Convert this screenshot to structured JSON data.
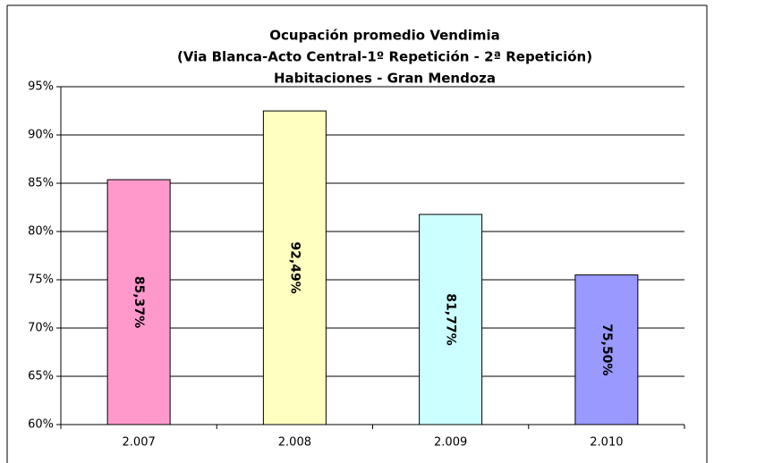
{
  "chart_data": {
    "type": "bar",
    "title": [
      "Ocupación promedio Vendimia",
      "(Via Blanca-Acto Central-1º Repetición - 2ª Repetición)",
      "Habitaciones - Gran Mendoza"
    ],
    "categories": [
      "2.007",
      "2.008",
      "2.009",
      "2.010"
    ],
    "values": [
      85.37,
      92.49,
      81.77,
      75.5
    ],
    "value_labels": [
      "85,37%",
      "92,49%",
      "81,77%",
      "75,50%"
    ],
    "colors": [
      "#ff99cc",
      "#ffffc0",
      "#ccffff",
      "#9999ff"
    ],
    "ylim": [
      60,
      95
    ],
    "yticks": [
      {
        "value": 60,
        "label": "60%"
      },
      {
        "value": 65,
        "label": "65%"
      },
      {
        "value": 70,
        "label": "70%"
      },
      {
        "value": 75,
        "label": "75%"
      },
      {
        "value": 80,
        "label": "80%"
      },
      {
        "value": 85,
        "label": "85%"
      },
      {
        "value": 90,
        "label": "90%"
      },
      {
        "value": 95,
        "label": "95%"
      }
    ],
    "grid": true
  }
}
